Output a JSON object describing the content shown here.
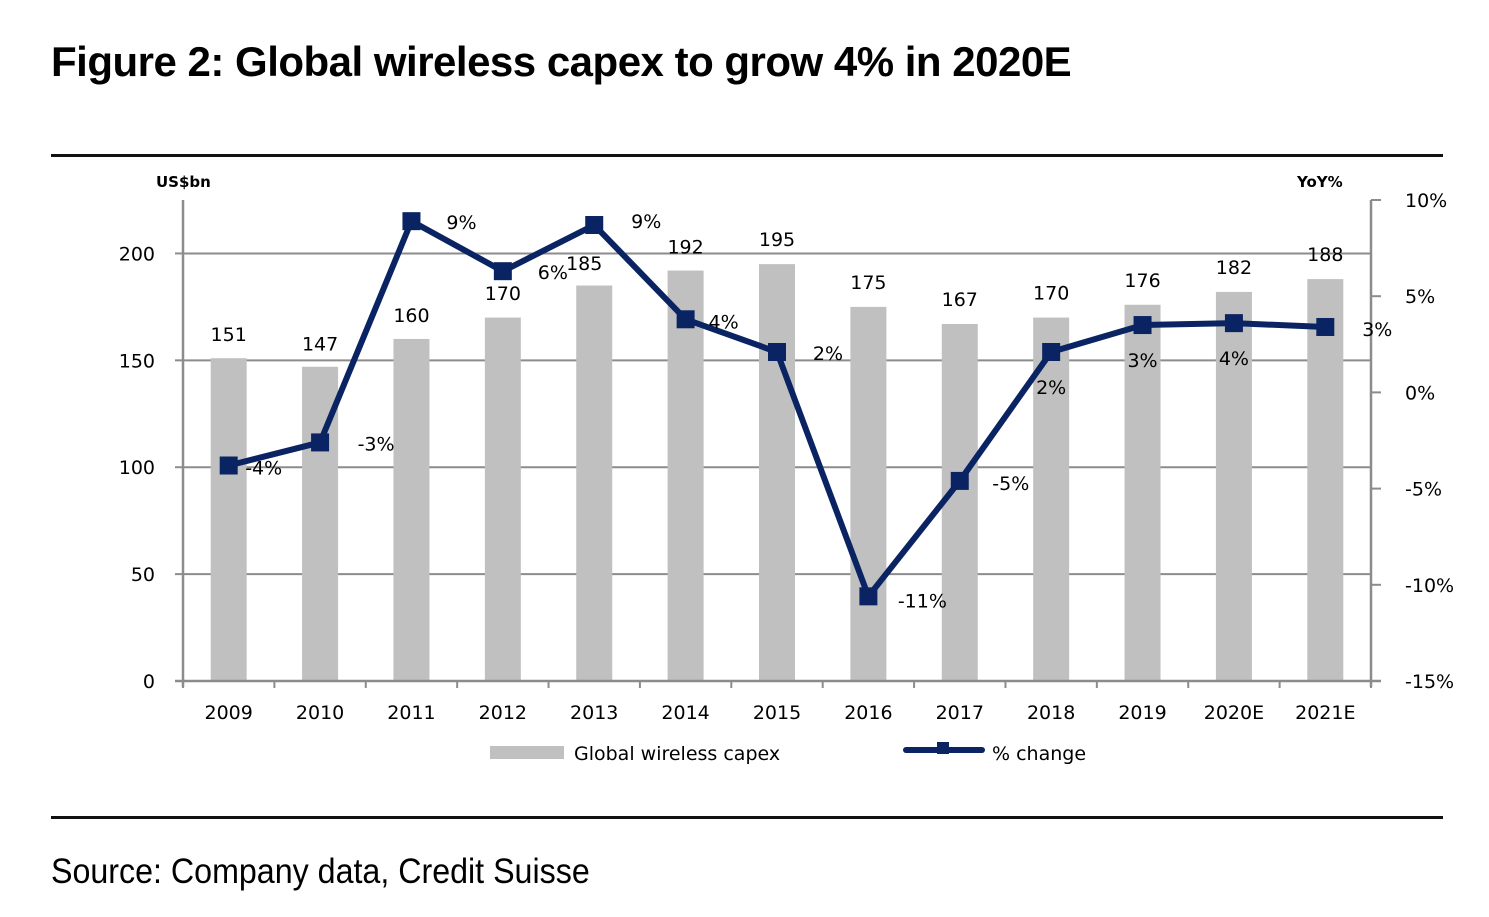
{
  "figure": {
    "title": "Figure 2: Global wireless capex to grow 4% in 2020E",
    "source": "Source: Company data, Credit Suisse"
  },
  "chart_data": {
    "type": "bar",
    "title": "Figure 2: Global wireless capex to grow 4% in 2020E",
    "categories": [
      "2009",
      "2010",
      "2011",
      "2012",
      "2013",
      "2014",
      "2015",
      "2016",
      "2017",
      "2018",
      "2019",
      "2020E",
      "2021E"
    ],
    "series": [
      {
        "name": "Global wireless capex",
        "type": "bar",
        "axis": "left",
        "color": "#c0c0c0",
        "values": [
          151,
          147,
          160,
          170,
          185,
          192,
          195,
          175,
          167,
          170,
          176,
          182,
          188
        ],
        "labels": [
          "151",
          "147",
          "160",
          "170",
          "185",
          "192",
          "195",
          "175",
          "167",
          "170",
          "176",
          "182",
          "188"
        ]
      },
      {
        "name": "% change",
        "type": "line",
        "axis": "right",
        "color": "#0a2463",
        "marker": "square",
        "values": [
          -3.8,
          -2.6,
          8.9,
          6.3,
          8.7,
          3.8,
          2.1,
          -10.6,
          -4.6,
          2.1,
          3.5,
          3.6,
          3.4
        ],
        "labels": [
          "-4%",
          "-3%",
          "9%",
          "6%",
          "9%",
          "4%",
          "2%",
          "-11%",
          "-5%",
          "2%",
          "3%",
          "4%",
          "3%"
        ]
      }
    ],
    "left_axis": {
      "label": "US$bn",
      "range": [
        0,
        225
      ],
      "ticks": [
        0,
        50,
        100,
        150,
        200
      ],
      "tick_labels": [
        "0",
        "50",
        "100",
        "150",
        "200"
      ]
    },
    "right_axis": {
      "label": "YoY%",
      "range": [
        -15,
        10
      ],
      "ticks": [
        -15,
        -10,
        -5,
        0,
        5,
        10
      ],
      "tick_labels": [
        "-15%",
        "-10%",
        "-5%",
        "0%",
        "5%",
        "10%"
      ]
    },
    "xlabel": "",
    "grid": true,
    "legend": {
      "position": "bottom",
      "entries": [
        "Global wireless capex",
        "% change"
      ]
    }
  }
}
